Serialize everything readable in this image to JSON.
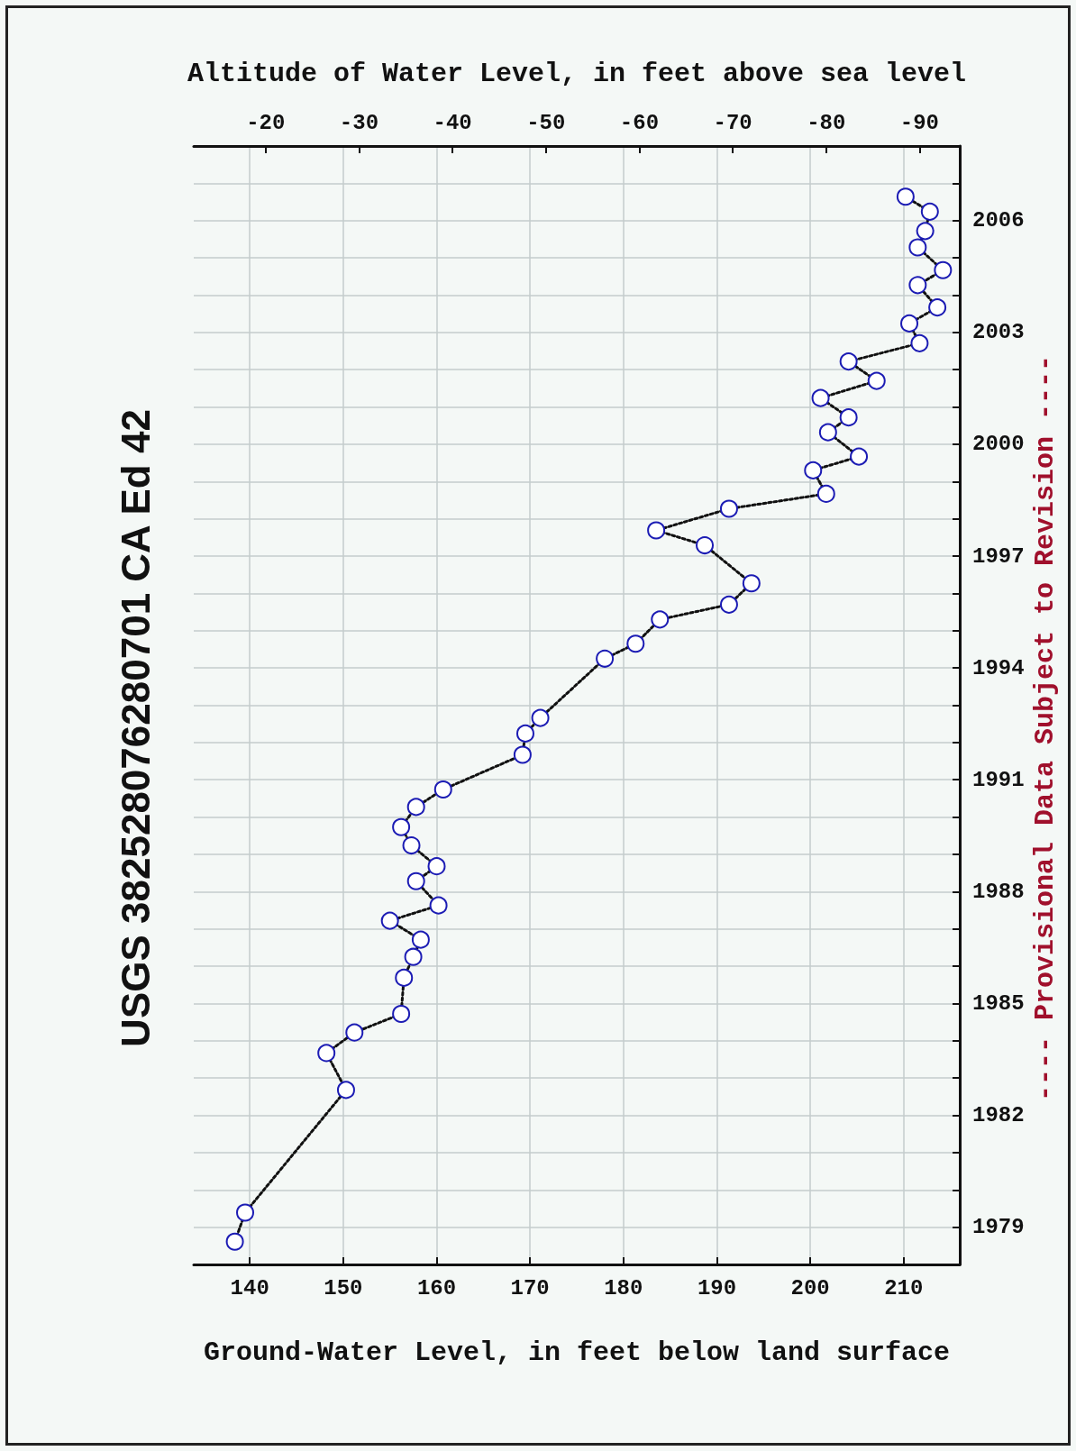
{
  "chart_data": {
    "type": "line",
    "title": "USGS 382528076280701 CA Ed 42",
    "xlabel": "Ground-Water Level, in feet below land surface",
    "x2label": "Altitude of Water Level, in feet above sea level",
    "annotations": [
      "---- Provisional Data Subject to Revision ----"
    ],
    "x": [
      138.4,
      139.5,
      150.3,
      148.2,
      151.2,
      156.2,
      156.5,
      157.5,
      158.3,
      155.0,
      160.2,
      157.8,
      160.0,
      157.3,
      156.2,
      157.8,
      160.7,
      169.2,
      169.5,
      171.1,
      178.0,
      181.3,
      183.9,
      191.3,
      193.7,
      188.7,
      183.5,
      191.3,
      201.7,
      200.3,
      205.2,
      201.9,
      204.1,
      201.1,
      207.1,
      204.1,
      211.7,
      210.6,
      213.6,
      211.5,
      214.2,
      211.5,
      212.3,
      212.8,
      210.2
    ],
    "series": [
      {
        "color": "#1c1cb4",
        "marker": "circle",
        "line_style": "dotted",
        "values": [
          1978.61,
          1979.39,
          1982.68,
          1983.67,
          1984.22,
          1984.72,
          1985.69,
          1986.25,
          1986.71,
          1987.22,
          1987.63,
          1988.28,
          1988.68,
          1989.24,
          1989.73,
          1990.27,
          1990.74,
          1991.67,
          1992.24,
          1992.66,
          1994.25,
          1994.65,
          1995.3,
          1995.7,
          1996.27,
          1997.29,
          1997.69,
          1998.27,
          1998.67,
          1999.3,
          1999.67,
          2000.32,
          2000.72,
          2001.24,
          2001.7,
          2002.22,
          2002.71,
          2003.24,
          2003.67,
          2004.27,
          2004.67,
          2005.28,
          2005.72,
          2006.24,
          2006.64
        ]
      }
    ],
    "xlim": [
      134,
      216
    ],
    "xticks": [
      140,
      150,
      160,
      170,
      180,
      190,
      200,
      210
    ],
    "x2lim": [
      -12.3,
      -94.3
    ],
    "x2ticks": [
      -20,
      -30,
      -40,
      -50,
      -60,
      -70,
      -80,
      -90
    ],
    "ylim": [
      1978,
      2008
    ],
    "yticks": [
      1979,
      {
        "value": 1980,
        "label": null
      },
      {
        "value": 1981,
        "label": null
      },
      1982,
      {
        "value": 1983,
        "label": null
      },
      {
        "value": 1984,
        "label": null
      },
      1985,
      {
        "value": 1986,
        "label": null
      },
      {
        "value": 1987,
        "label": null
      },
      1988,
      {
        "value": 1989,
        "label": null
      },
      {
        "value": 1990,
        "label": null
      },
      1991,
      {
        "value": 1992,
        "label": null
      },
      {
        "value": 1993,
        "label": null
      },
      1994,
      {
        "value": 1995,
        "label": null
      },
      {
        "value": 1996,
        "label": null
      },
      1997,
      {
        "value": 1998,
        "label": null
      },
      {
        "value": 1999,
        "label": null
      },
      2000,
      {
        "value": 2001,
        "label": null
      },
      {
        "value": 2002,
        "label": null
      },
      2003,
      {
        "value": 2004,
        "label": null
      },
      {
        "value": 2005,
        "label": null
      },
      2006,
      {
        "value": 2007,
        "label": null
      }
    ],
    "grid": true
  }
}
